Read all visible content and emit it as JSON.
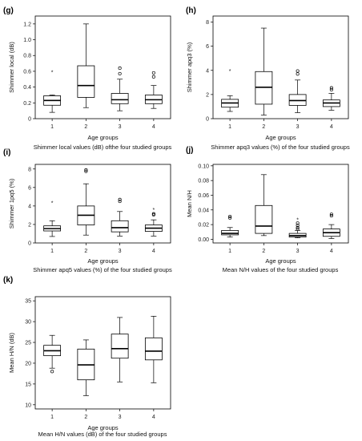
{
  "chart_data": [
    {
      "type": "box",
      "panel_label": "(g)",
      "caption": "Shimmer local values (dB) ofthe four studied groups",
      "xlabel": "Age groups",
      "ylabel": "Shimmer local (dB)",
      "categories": [
        "1",
        "2",
        "3",
        "4"
      ],
      "ylim": [
        0,
        1.3
      ],
      "yticks": [
        "0",
        "0.2",
        "0.4",
        "0.6",
        "0.8",
        "1.0",
        "1.2"
      ],
      "yticks_values": [
        0,
        0.2,
        0.4,
        0.6,
        0.8,
        1.0,
        1.2
      ],
      "boxes": [
        {
          "min": 0.08,
          "q1": 0.17,
          "median": 0.23,
          "q3": 0.29,
          "max": 0.3,
          "outliers": [
            {
              "v": 0.59,
              "m": "star"
            }
          ]
        },
        {
          "min": 0.14,
          "q1": 0.27,
          "median": 0.42,
          "q3": 0.67,
          "max": 1.2,
          "outliers": []
        },
        {
          "min": 0.1,
          "q1": 0.19,
          "median": 0.24,
          "q3": 0.32,
          "max": 0.5,
          "outliers": [
            {
              "v": 0.57,
              "m": "circle"
            },
            {
              "v": 0.64,
              "m": "circle"
            }
          ]
        },
        {
          "min": 0.13,
          "q1": 0.19,
          "median": 0.24,
          "q3": 0.3,
          "max": 0.42,
          "outliers": [
            {
              "v": 0.53,
              "m": "circle"
            },
            {
              "v": 0.58,
              "m": "circle"
            }
          ]
        }
      ]
    },
    {
      "type": "box",
      "panel_label": "(h)",
      "caption": "Shimmer apq3 values (%) of the four studied groups",
      "xlabel": "Age groups",
      "ylabel": "Shimmer apq3 (%)",
      "categories": [
        "1",
        "2",
        "3",
        "4"
      ],
      "ylim": [
        0,
        8.5
      ],
      "yticks": [
        "0",
        "2",
        "4",
        "6",
        "8"
      ],
      "yticks_values": [
        0,
        2,
        4,
        6,
        8
      ],
      "boxes": [
        {
          "min": 0.6,
          "q1": 0.95,
          "median": 1.3,
          "q3": 1.6,
          "max": 1.9,
          "outliers": [
            {
              "v": 3.95,
              "m": "star"
            }
          ]
        },
        {
          "min": 0.3,
          "q1": 1.2,
          "median": 2.6,
          "q3": 3.9,
          "max": 7.5,
          "outliers": []
        },
        {
          "min": 0.5,
          "q1": 1.1,
          "median": 1.5,
          "q3": 2.0,
          "max": 3.2,
          "outliers": [
            {
              "v": 3.7,
              "m": "circle"
            },
            {
              "v": 3.95,
              "m": "circle"
            }
          ]
        },
        {
          "min": 0.7,
          "q1": 1.0,
          "median": 1.3,
          "q3": 1.55,
          "max": 2.1,
          "outliers": [
            {
              "v": 2.4,
              "m": "circle"
            },
            {
              "v": 2.55,
              "m": "circle"
            }
          ]
        }
      ]
    },
    {
      "type": "box",
      "panel_label": "(i)",
      "caption": "Shimmer apq5 values (%) of the four studied groups",
      "xlabel": "Age groups",
      "ylabel": "Shimmer 1pq5 (%)",
      "categories": [
        "1",
        "2",
        "3",
        "4"
      ],
      "ylim": [
        0,
        8.5
      ],
      "yticks": [
        "0",
        "2",
        "4",
        "6",
        "8"
      ],
      "yticks_values": [
        0,
        2,
        4,
        6,
        8
      ],
      "boxes": [
        {
          "min": 0.7,
          "q1": 1.3,
          "median": 1.55,
          "q3": 1.85,
          "max": 2.4,
          "outliers": [
            {
              "v": 4.35,
              "m": "star"
            }
          ]
        },
        {
          "min": 0.85,
          "q1": 1.95,
          "median": 3.0,
          "q3": 4.0,
          "max": 6.4,
          "outliers": [
            {
              "v": 7.75,
              "m": "circle"
            },
            {
              "v": 7.9,
              "m": "circle"
            }
          ]
        },
        {
          "min": 0.75,
          "q1": 1.2,
          "median": 1.65,
          "q3": 2.4,
          "max": 3.4,
          "outliers": [
            {
              "v": 4.5,
              "m": "circle"
            },
            {
              "v": 4.7,
              "m": "circle"
            }
          ]
        },
        {
          "min": 0.75,
          "q1": 1.25,
          "median": 1.6,
          "q3": 1.95,
          "max": 2.5,
          "outliers": [
            {
              "v": 3.05,
              "m": "circle"
            },
            {
              "v": 3.15,
              "m": "circle"
            },
            {
              "v": 3.6,
              "m": "star"
            }
          ]
        }
      ]
    },
    {
      "type": "box",
      "panel_label": "(j)",
      "caption": "Mean N/H values of the four studied groups",
      "xlabel": "Age groups",
      "ylabel": "Mean N/H",
      "categories": [
        "1",
        "2",
        "3",
        "4"
      ],
      "ylim": [
        -0.005,
        0.102
      ],
      "yticks": [
        "0.00",
        "0.02",
        "0.04",
        "0.06",
        "0.08",
        "0.10"
      ],
      "yticks_values": [
        0,
        0.02,
        0.04,
        0.06,
        0.08,
        0.1
      ],
      "boxes": [
        {
          "min": 0.003,
          "q1": 0.006,
          "median": 0.008,
          "q3": 0.012,
          "max": 0.016,
          "outliers": [
            {
              "v": 0.029,
              "m": "circle"
            },
            {
              "v": 0.031,
              "m": "circle"
            }
          ]
        },
        {
          "min": 0.005,
          "q1": 0.008,
          "median": 0.018,
          "q3": 0.046,
          "max": 0.088,
          "outliers": []
        },
        {
          "min": 0.002,
          "q1": 0.003,
          "median": 0.005,
          "q3": 0.008,
          "max": 0.012,
          "outliers": [
            {
              "v": 0.014,
              "m": "circle"
            },
            {
              "v": 0.016,
              "m": "circle"
            },
            {
              "v": 0.019,
              "m": "circle"
            },
            {
              "v": 0.022,
              "m": "circle"
            },
            {
              "v": 0.027,
              "m": "star"
            }
          ]
        },
        {
          "min": 0.001,
          "q1": 0.004,
          "median": 0.009,
          "q3": 0.014,
          "max": 0.02,
          "outliers": [
            {
              "v": 0.032,
              "m": "circle"
            },
            {
              "v": 0.034,
              "m": "circle"
            }
          ]
        }
      ]
    },
    {
      "type": "box",
      "panel_label": "(k)",
      "caption": "Mean H/N values (dB) of the four studied groups",
      "xlabel": "Age groups",
      "ylabel": "Mean H/N (dB)",
      "categories": [
        "1",
        "2",
        "3",
        "4"
      ],
      "ylim": [
        9,
        36
      ],
      "yticks": [
        "10",
        "15",
        "20",
        "25",
        "30",
        "35"
      ],
      "yticks_values": [
        10,
        15,
        20,
        25,
        30,
        35
      ],
      "boxes": [
        {
          "min": 18.8,
          "q1": 21.8,
          "median": 23.0,
          "q3": 24.3,
          "max": 26.7,
          "outliers": [
            {
              "v": 18.0,
              "m": "circle"
            }
          ]
        },
        {
          "min": 12.2,
          "q1": 16.0,
          "median": 19.6,
          "q3": 23.4,
          "max": 25.6,
          "outliers": []
        },
        {
          "min": 15.5,
          "q1": 21.2,
          "median": 23.5,
          "q3": 27.0,
          "max": 31.0,
          "outliers": []
        },
        {
          "min": 15.3,
          "q1": 20.8,
          "median": 22.9,
          "q3": 26.1,
          "max": 31.3,
          "outliers": []
        }
      ]
    }
  ]
}
